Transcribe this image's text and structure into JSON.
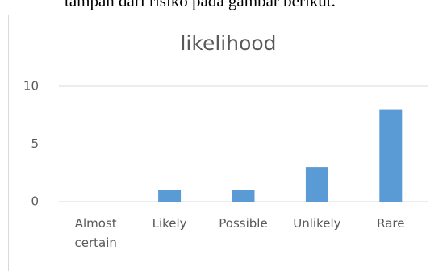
{
  "caption": "tampan dari risiko pada gambar berikut.",
  "chart_data": {
    "type": "bar",
    "title": "likelihood",
    "categories": [
      "Almost certain",
      "Likely",
      "Possible",
      "Unlikely",
      "Rare"
    ],
    "values": [
      0,
      1,
      1,
      3,
      8
    ],
    "color": "#5b9bd5",
    "ylim": [
      0,
      10
    ],
    "yticks": [
      0,
      5,
      10
    ],
    "grid": true
  }
}
